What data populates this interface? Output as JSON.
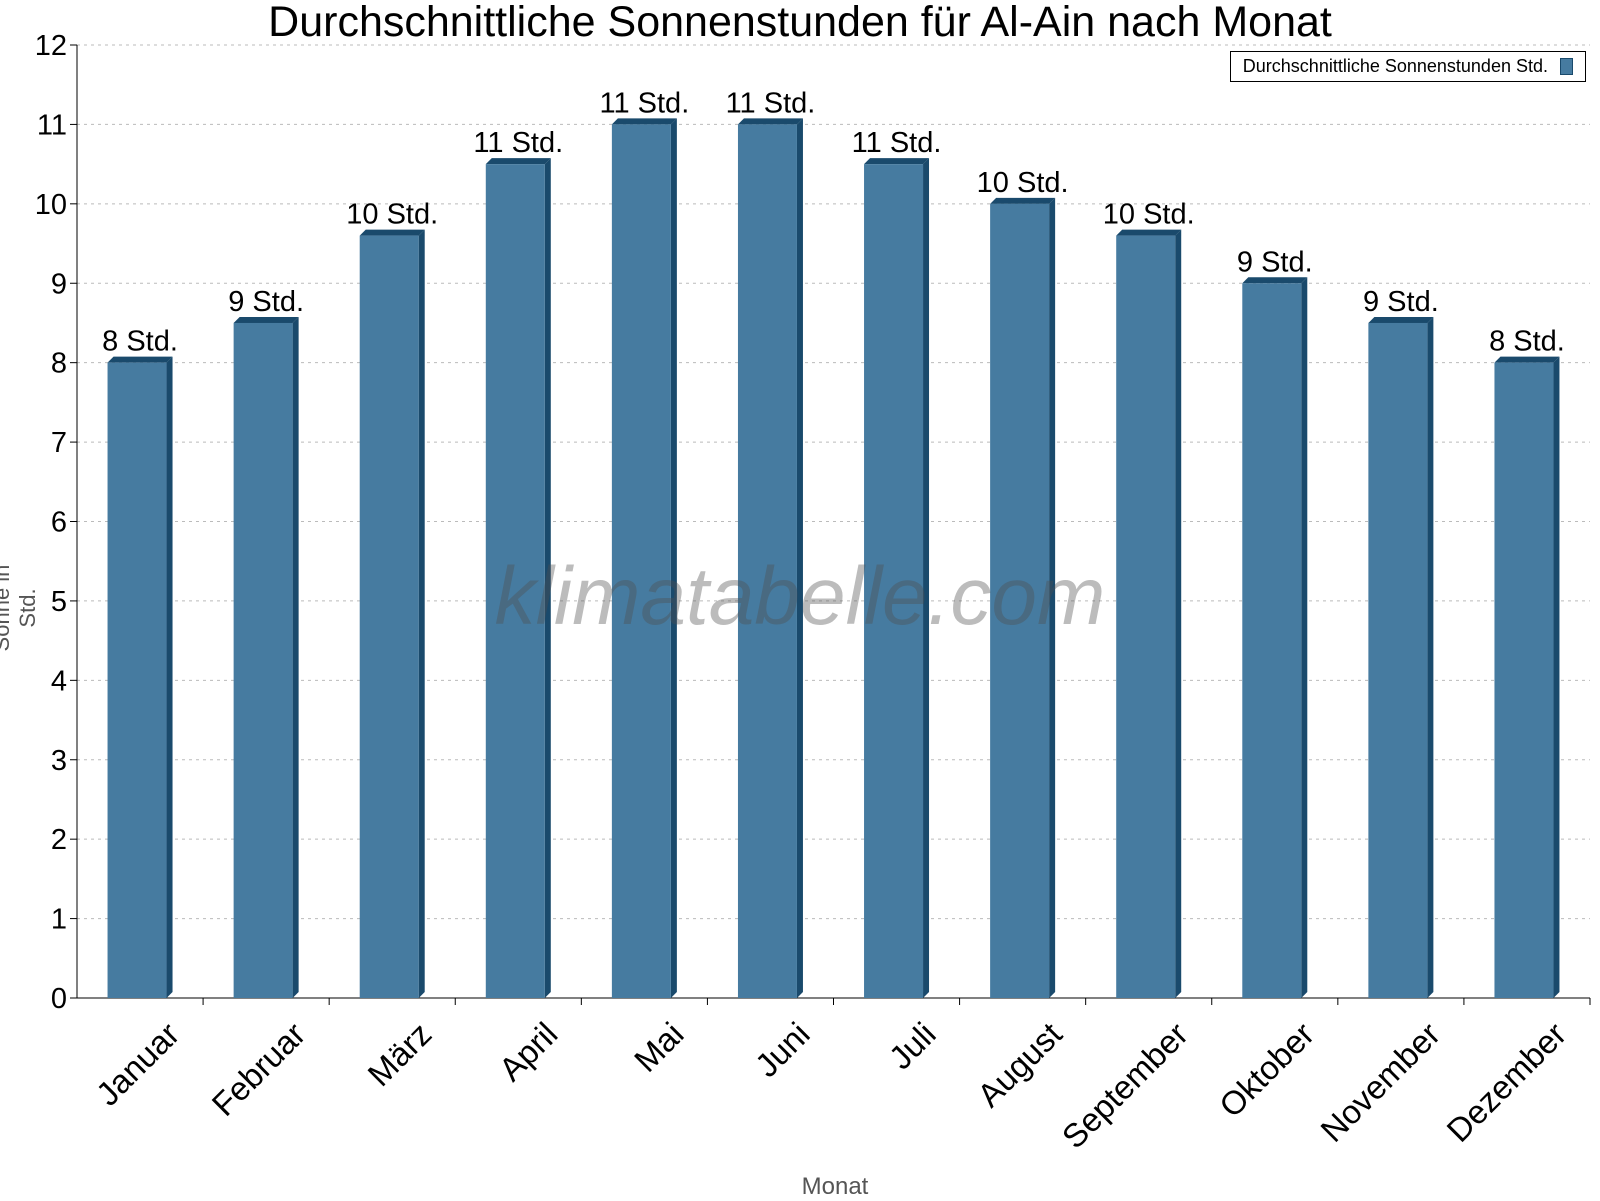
{
  "chart_data": {
    "type": "bar",
    "title": "Durchschnittliche Sonnenstunden für Al-Ain nach Monat",
    "xlabel": "Monat",
    "ylabel": "Sonne in Std.",
    "ylim": [
      0,
      12
    ],
    "yticks": [
      0,
      1,
      2,
      3,
      4,
      5,
      6,
      7,
      8,
      9,
      10,
      11,
      12
    ],
    "grid": true,
    "legend_position": "top-right",
    "categories": [
      "Januar",
      "Februar",
      "März",
      "April",
      "Mai",
      "Juni",
      "Juli",
      "August",
      "September",
      "Oktober",
      "November",
      "Dezember"
    ],
    "series": [
      {
        "name": "Durchschnittliche Sonnenstunden Std.",
        "values": [
          8,
          8.5,
          9.6,
          10.5,
          11,
          11,
          10.5,
          10,
          9.6,
          9,
          8.5,
          8
        ],
        "data_labels": [
          "8 Std.",
          "9 Std.",
          "10 Std.",
          "11 Std.",
          "11 Std.",
          "11 Std.",
          "11 Std.",
          "10 Std.",
          "10 Std.",
          "9 Std.",
          "9 Std.",
          "8 Std."
        ],
        "color": "#467ba0",
        "side_color": "#1a4a6c"
      }
    ],
    "watermark": "klimatabelle.com"
  }
}
